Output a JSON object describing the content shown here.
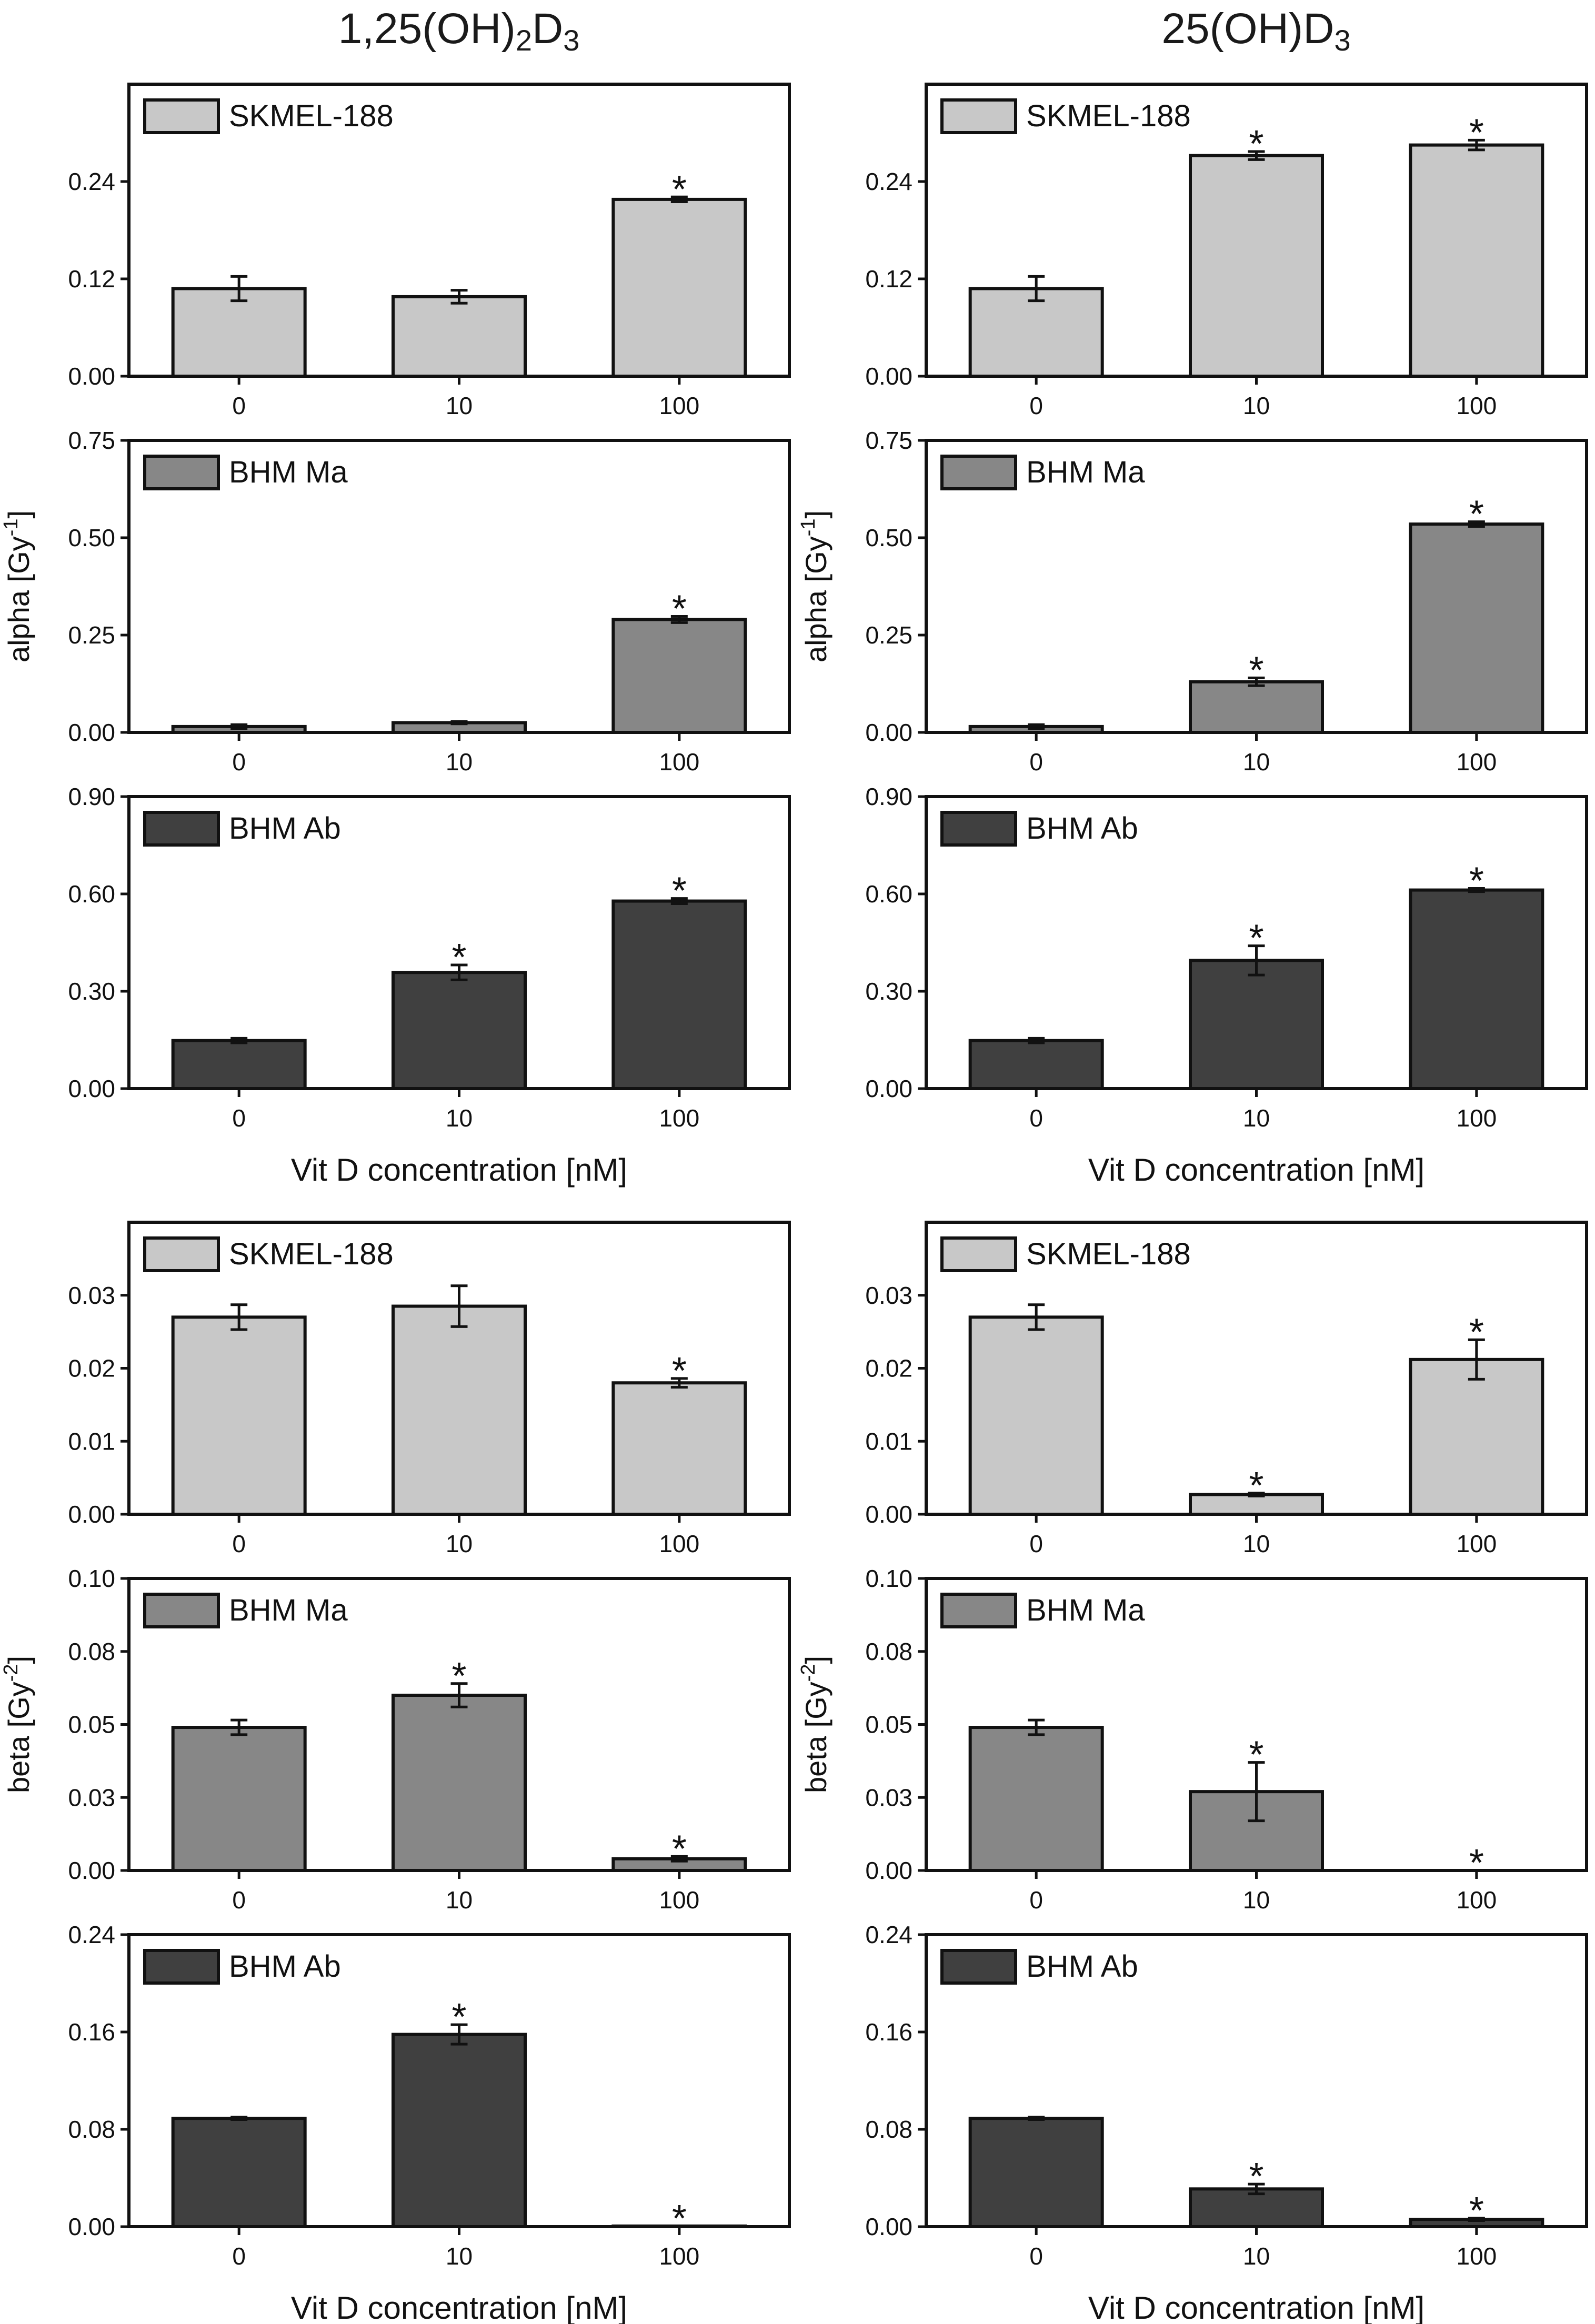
{
  "columns": [
    {
      "title_main": "1,25(OH)",
      "title_sub1": "2",
      "title_mid": "D",
      "title_sub2": "3"
    },
    {
      "title_main": "25(OH)D",
      "title_sub1": "3",
      "title_mid": "",
      "title_sub2": ""
    }
  ],
  "y_axis_labels": {
    "alpha": {
      "base": "alpha [Gy",
      "sup": "-1",
      "end": "]"
    },
    "beta": {
      "base": "beta [Gy",
      "sup": "-2",
      "end": "]"
    }
  },
  "x_axis_label": "Vit D concentration [nM]",
  "colors": {
    "SKMEL-188": "#c8c8c8",
    "BHM Ma": "#878787",
    "BHM Ab": "#404040"
  },
  "chart_data": [
    {
      "type": "bar",
      "column": 0,
      "row": 0,
      "param": "alpha",
      "series": "SKMEL-188",
      "categories": [
        "0",
        "10",
        "100"
      ],
      "values": [
        0.108,
        0.098,
        0.218
      ],
      "errors": [
        0.015,
        0.008,
        0.003
      ],
      "significant": [
        false,
        false,
        true
      ],
      "ylim": [
        0,
        0.36
      ],
      "yticks": [
        0,
        0.12,
        0.24
      ],
      "ytick_labels": [
        "0.00",
        "0.12",
        "0.24"
      ],
      "show_ylabel": false,
      "show_xlabel": false
    },
    {
      "type": "bar",
      "column": 1,
      "row": 0,
      "param": "alpha",
      "series": "SKMEL-188",
      "categories": [
        "0",
        "10",
        "100"
      ],
      "values": [
        0.108,
        0.272,
        0.285
      ],
      "errors": [
        0.015,
        0.005,
        0.006
      ],
      "significant": [
        false,
        true,
        true
      ],
      "ylim": [
        0,
        0.36
      ],
      "yticks": [
        0,
        0.12,
        0.24
      ],
      "ytick_labels": [
        "0.00",
        "0.12",
        "0.24"
      ],
      "show_ylabel": false,
      "show_xlabel": false
    },
    {
      "type": "bar",
      "column": 0,
      "row": 1,
      "param": "alpha",
      "series": "BHM Ma",
      "categories": [
        "0",
        "10",
        "100"
      ],
      "values": [
        0.015,
        0.025,
        0.29
      ],
      "errors": [
        0.005,
        0.003,
        0.008
      ],
      "significant": [
        false,
        false,
        true
      ],
      "ylim": [
        0,
        0.75
      ],
      "yticks": [
        0,
        0.25,
        0.5,
        0.75
      ],
      "ytick_labels": [
        "0.00",
        "0.25",
        "0.50",
        "0.75"
      ],
      "show_ylabel": true,
      "show_xlabel": false
    },
    {
      "type": "bar",
      "column": 1,
      "row": 1,
      "param": "alpha",
      "series": "BHM Ma",
      "categories": [
        "0",
        "10",
        "100"
      ],
      "values": [
        0.015,
        0.13,
        0.535
      ],
      "errors": [
        0.005,
        0.01,
        0.006
      ],
      "significant": [
        false,
        true,
        true
      ],
      "ylim": [
        0,
        0.75
      ],
      "yticks": [
        0,
        0.25,
        0.5,
        0.75
      ],
      "ytick_labels": [
        "0.00",
        "0.25",
        "0.50",
        "0.75"
      ],
      "show_ylabel": true,
      "show_xlabel": false
    },
    {
      "type": "bar",
      "column": 0,
      "row": 2,
      "param": "alpha",
      "series": "BHM Ab",
      "categories": [
        "0",
        "10",
        "100"
      ],
      "values": [
        0.148,
        0.358,
        0.578
      ],
      "errors": [
        0.007,
        0.023,
        0.008
      ],
      "significant": [
        false,
        true,
        true
      ],
      "ylim": [
        0,
        0.9
      ],
      "yticks": [
        0,
        0.3,
        0.6,
        0.9
      ],
      "ytick_labels": [
        "0.00",
        "0.30",
        "0.60",
        "0.90"
      ],
      "show_ylabel": false,
      "show_xlabel": true
    },
    {
      "type": "bar",
      "column": 1,
      "row": 2,
      "param": "alpha",
      "series": "BHM Ab",
      "categories": [
        "0",
        "10",
        "100"
      ],
      "values": [
        0.148,
        0.395,
        0.612
      ],
      "errors": [
        0.007,
        0.045,
        0.005
      ],
      "significant": [
        false,
        true,
        true
      ],
      "ylim": [
        0,
        0.9
      ],
      "yticks": [
        0,
        0.3,
        0.6,
        0.9
      ],
      "ytick_labels": [
        "0.00",
        "0.30",
        "0.60",
        "0.90"
      ],
      "show_ylabel": false,
      "show_xlabel": true
    },
    {
      "type": "bar",
      "column": 0,
      "row": 3,
      "param": "beta",
      "series": "SKMEL-188",
      "categories": [
        "0",
        "10",
        "100"
      ],
      "values": [
        0.027,
        0.0285,
        0.018
      ],
      "errors": [
        0.0017,
        0.0028,
        0.0006
      ],
      "significant": [
        false,
        false,
        true
      ],
      "ylim": [
        0,
        0.04
      ],
      "yticks": [
        0,
        0.01,
        0.02,
        0.03
      ],
      "ytick_labels": [
        "0.00",
        "0.01",
        "0.02",
        "0.03"
      ],
      "show_ylabel": false,
      "show_xlabel": false
    },
    {
      "type": "bar",
      "column": 1,
      "row": 3,
      "param": "beta",
      "series": "SKMEL-188",
      "categories": [
        "0",
        "10",
        "100"
      ],
      "values": [
        0.027,
        0.0027,
        0.0212
      ],
      "errors": [
        0.0017,
        0.0002,
        0.0027
      ],
      "significant": [
        false,
        true,
        true
      ],
      "ylim": [
        0,
        0.04
      ],
      "yticks": [
        0,
        0.01,
        0.02,
        0.03
      ],
      "ytick_labels": [
        "0.00",
        "0.01",
        "0.02",
        "0.03"
      ],
      "show_ylabel": false,
      "show_xlabel": false
    },
    {
      "type": "bar",
      "column": 0,
      "row": 4,
      "param": "beta",
      "series": "BHM Ma",
      "categories": [
        "0",
        "10",
        "100"
      ],
      "values": [
        0.049,
        0.06,
        0.004
      ],
      "errors": [
        0.0025,
        0.004,
        0.0008
      ],
      "significant": [
        false,
        true,
        true
      ],
      "ylim": [
        0,
        0.1
      ],
      "yticks": [
        0,
        0.025,
        0.05,
        0.075,
        0.1
      ],
      "ytick_labels": [
        "0.00",
        "0.03",
        "0.05",
        "0.08",
        "0.10"
      ],
      "show_ylabel": true,
      "show_xlabel": false
    },
    {
      "type": "bar",
      "column": 1,
      "row": 4,
      "param": "beta",
      "series": "BHM Ma",
      "categories": [
        "0",
        "10",
        "100"
      ],
      "values": [
        0.049,
        0.027,
        0.0
      ],
      "errors": [
        0.0025,
        0.01,
        0.0
      ],
      "significant": [
        false,
        true,
        true
      ],
      "ylim": [
        0,
        0.1
      ],
      "yticks": [
        0,
        0.025,
        0.05,
        0.075,
        0.1
      ],
      "ytick_labels": [
        "0.00",
        "0.03",
        "0.05",
        "0.08",
        "0.10"
      ],
      "show_ylabel": true,
      "show_xlabel": false
    },
    {
      "type": "bar",
      "column": 0,
      "row": 5,
      "param": "beta",
      "series": "BHM Ab",
      "categories": [
        "0",
        "10",
        "100"
      ],
      "values": [
        0.089,
        0.158,
        0.0005
      ],
      "errors": [
        0.001,
        0.008,
        0.0
      ],
      "significant": [
        false,
        true,
        true
      ],
      "ylim": [
        0,
        0.24
      ],
      "yticks": [
        0,
        0.08,
        0.16,
        0.24
      ],
      "ytick_labels": [
        "0.00",
        "0.08",
        "0.16",
        "0.24"
      ],
      "show_ylabel": false,
      "show_xlabel": true
    },
    {
      "type": "bar",
      "column": 1,
      "row": 5,
      "param": "beta",
      "series": "BHM Ab",
      "categories": [
        "0",
        "10",
        "100"
      ],
      "values": [
        0.089,
        0.031,
        0.006
      ],
      "errors": [
        0.001,
        0.004,
        0.001
      ],
      "significant": [
        false,
        true,
        true
      ],
      "ylim": [
        0,
        0.24
      ],
      "yticks": [
        0,
        0.08,
        0.16,
        0.24
      ],
      "ytick_labels": [
        "0.00",
        "0.08",
        "0.16",
        "0.24"
      ],
      "show_ylabel": false,
      "show_xlabel": true
    }
  ]
}
